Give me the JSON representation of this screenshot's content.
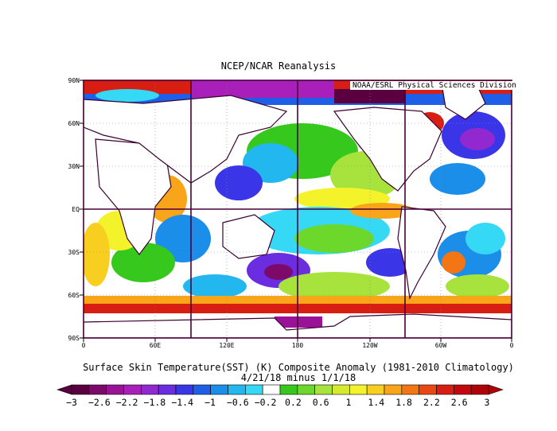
{
  "title": "NCEP/NCAR Reanalysis",
  "credit": "NOAA/ESRL Physical Sciences Division",
  "latitude_labels": [
    "90N",
    "60N",
    "30N",
    "EQ",
    "30S",
    "60S",
    "90S"
  ],
  "longitude_labels": [
    "0",
    "60E",
    "120E",
    "180",
    "120W",
    "60W",
    "0"
  ],
  "caption_line1": "Surface Skin Temperature(SST) (K) Composite Anomaly (1981-2010 Climatology)",
  "caption_line2": "4/21/18 minus 1/1/18",
  "colorbar": {
    "labels": [
      "-3",
      "-2.6",
      "-2.2",
      "-1.8",
      "-1.4",
      "-1",
      "-0.6",
      "-0.2",
      "0.2",
      "0.6",
      "1",
      "1.4",
      "1.8",
      "2.2",
      "2.6",
      "3"
    ],
    "colors": [
      "#5a0040",
      "#7d0a6b",
      "#9a1296",
      "#a81fb9",
      "#9228d0",
      "#6a2ee0",
      "#3a36e8",
      "#1f5fe8",
      "#1a8ee8",
      "#22b8ef",
      "#35d8f5",
      "#ffffff",
      "#36c81c",
      "#6cd82c",
      "#a8e23c",
      "#d6ea2c",
      "#f4f22a",
      "#f8cf20",
      "#f8a51a",
      "#f47514",
      "#ea4812",
      "#d81e12",
      "#c40810",
      "#b00008"
    ]
  },
  "colors": {
    "frame": "#4a0038",
    "coast": "#3a0030"
  }
}
